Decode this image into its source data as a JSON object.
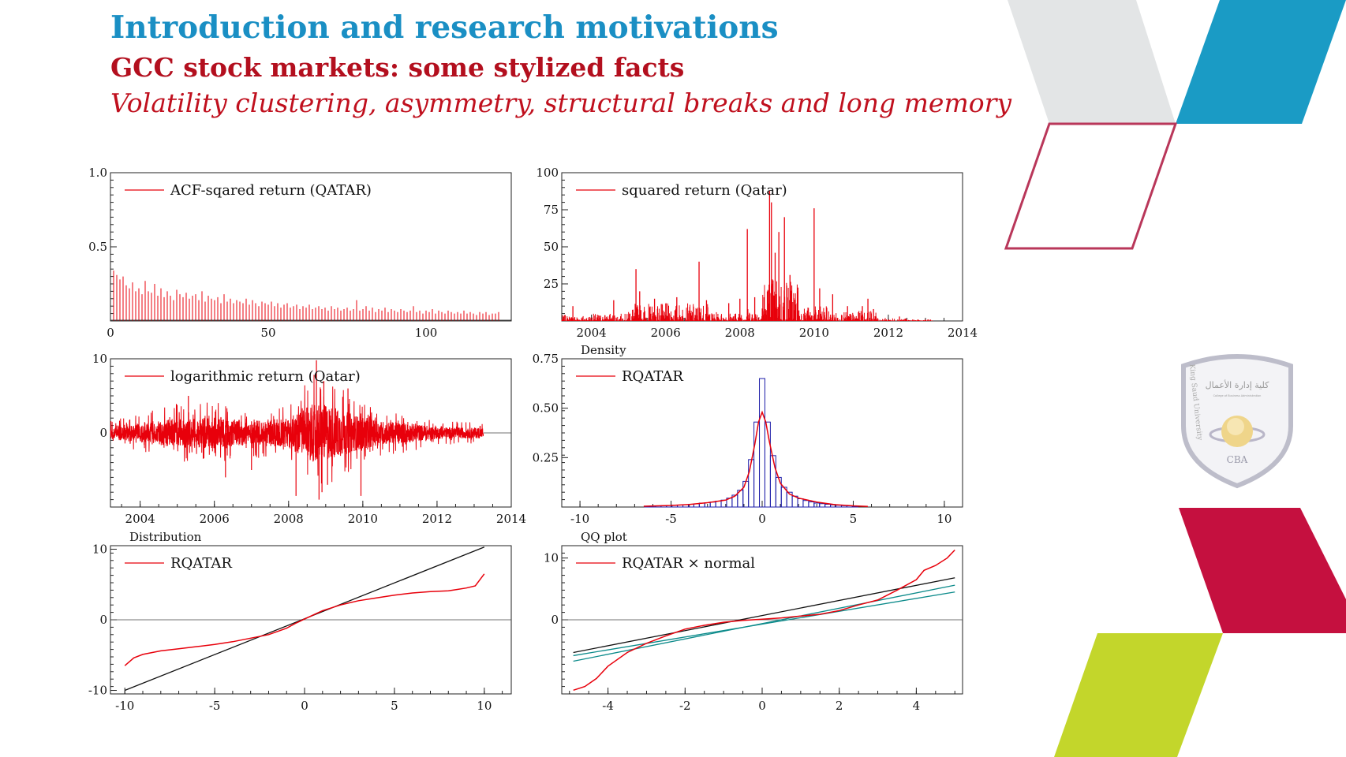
{
  "slide": {
    "title": "Introduction and research motivations",
    "subtitle": "GCC stock markets: some stylized facts",
    "subsubtitle": "Volatility clustering, asymmetry, structural breaks and long memory"
  },
  "logo": {
    "name": "CBA",
    "arabic": "كلية إدارة الأعمال",
    "arc_left": "King Saud University",
    "sub": "College of Business Administration"
  },
  "colors": {
    "blue": "#1a8fc4",
    "red": "#c0101e",
    "series": "#e8000b",
    "teal": "#0b8a8a",
    "crimson": "#c5103f",
    "lime": "#c3d62b",
    "grey": "#e3e5e6",
    "darkblue": "#1b1ba8"
  },
  "chart_data": [
    {
      "id": "acf",
      "type": "bar",
      "legend": "ACF-sqared return (QATAR)",
      "xlim": [
        0,
        127
      ],
      "ylim": [
        0,
        1.0
      ],
      "xticks": [
        "0",
        "50",
        "100"
      ],
      "yticks": [
        "1.0",
        "0.5"
      ],
      "lags_start": 1,
      "values": [
        0.34,
        0.31,
        0.28,
        0.3,
        0.24,
        0.22,
        0.26,
        0.2,
        0.22,
        0.18,
        0.27,
        0.2,
        0.19,
        0.25,
        0.17,
        0.22,
        0.16,
        0.2,
        0.17,
        0.14,
        0.21,
        0.18,
        0.16,
        0.19,
        0.15,
        0.17,
        0.18,
        0.14,
        0.2,
        0.13,
        0.17,
        0.15,
        0.14,
        0.16,
        0.12,
        0.18,
        0.13,
        0.15,
        0.12,
        0.14,
        0.13,
        0.12,
        0.15,
        0.11,
        0.14,
        0.12,
        0.1,
        0.13,
        0.12,
        0.11,
        0.13,
        0.1,
        0.12,
        0.09,
        0.11,
        0.12,
        0.09,
        0.1,
        0.11,
        0.08,
        0.1,
        0.09,
        0.11,
        0.08,
        0.09,
        0.1,
        0.08,
        0.09,
        0.07,
        0.1,
        0.08,
        0.09,
        0.07,
        0.08,
        0.09,
        0.07,
        0.08,
        0.14,
        0.07,
        0.08,
        0.1,
        0.07,
        0.09,
        0.06,
        0.08,
        0.07,
        0.09,
        0.06,
        0.08,
        0.07,
        0.06,
        0.08,
        0.07,
        0.06,
        0.07,
        0.1,
        0.06,
        0.07,
        0.05,
        0.07,
        0.06,
        0.08,
        0.05,
        0.07,
        0.06,
        0.05,
        0.07,
        0.06,
        0.05,
        0.06,
        0.05,
        0.07,
        0.05,
        0.06,
        0.05,
        0.04,
        0.06,
        0.05,
        0.06,
        0.04,
        0.05,
        0.05,
        0.06
      ]
    },
    {
      "id": "sqret",
      "type": "line",
      "legend": "squared return (Qatar)",
      "xlim": [
        2003.2,
        2014
      ],
      "ylim": [
        0,
        100
      ],
      "xticks": [
        "2004",
        "2006",
        "2008",
        "2010",
        "2012",
        "2014"
      ],
      "yticks": [
        "100",
        "75",
        "50",
        "25"
      ],
      "spikes": [
        [
          2003.5,
          10
        ],
        [
          2004.6,
          14
        ],
        [
          2005.2,
          35
        ],
        [
          2005.3,
          20
        ],
        [
          2005.7,
          15
        ],
        [
          2006.3,
          16
        ],
        [
          2006.9,
          40
        ],
        [
          2007.1,
          14
        ],
        [
          2007.7,
          12
        ],
        [
          2008.0,
          15
        ],
        [
          2008.2,
          62
        ],
        [
          2008.4,
          16
        ],
        [
          2008.65,
          16
        ],
        [
          2008.8,
          88
        ],
        [
          2008.85,
          80
        ],
        [
          2008.95,
          46
        ],
        [
          2009.05,
          60
        ],
        [
          2009.2,
          70
        ],
        [
          2009.35,
          31
        ],
        [
          2009.55,
          20
        ],
        [
          2010.0,
          76
        ],
        [
          2010.15,
          22
        ],
        [
          2010.5,
          18
        ],
        [
          2010.9,
          10
        ],
        [
          2011.3,
          10
        ],
        [
          2011.45,
          15
        ],
        [
          2011.6,
          8
        ],
        [
          2012.3,
          3
        ]
      ],
      "bursts": [
        [
          2003.2,
          2004.0,
          4
        ],
        [
          2004.0,
          2005.0,
          5
        ],
        [
          2005.0,
          2006.0,
          12
        ],
        [
          2006.0,
          2007.2,
          12
        ],
        [
          2007.2,
          2008.0,
          6
        ],
        [
          2008.0,
          2008.6,
          9
        ],
        [
          2008.6,
          2009.6,
          32
        ],
        [
          2009.6,
          2010.4,
          10
        ],
        [
          2010.4,
          2011.2,
          6
        ],
        [
          2011.2,
          2011.7,
          7
        ],
        [
          2011.7,
          2012.5,
          2
        ],
        [
          2012.5,
          2013.2,
          1
        ]
      ]
    },
    {
      "id": "logret",
      "type": "line",
      "legend": "logarithmic return (Qatar)",
      "xlim": [
        2003.2,
        2014
      ],
      "ylim": [
        -10,
        10
      ],
      "xticks": [
        "2004",
        "2006",
        "2008",
        "2010",
        "2012",
        "2014"
      ],
      "yticks": [
        "10",
        "0"
      ],
      "series_end": 2013.25,
      "amplitude_profile": [
        [
          2003.2,
          1.2
        ],
        [
          2004.0,
          1.6
        ],
        [
          2005.0,
          2.5
        ],
        [
          2006.0,
          2.6
        ],
        [
          2007.0,
          2.0
        ],
        [
          2008.0,
          2.6
        ],
        [
          2008.7,
          5.0
        ],
        [
          2009.2,
          4.5
        ],
        [
          2009.8,
          3.0
        ],
        [
          2010.5,
          2.0
        ],
        [
          2011.2,
          1.7
        ],
        [
          2012.0,
          1.0
        ],
        [
          2013.25,
          0.9
        ]
      ],
      "extremes": [
        [
          2008.75,
          9.8
        ],
        [
          2008.82,
          -9
        ],
        [
          2008.9,
          -8
        ],
        [
          2008.95,
          7
        ],
        [
          2009.05,
          -7
        ],
        [
          2008.2,
          -8.5
        ],
        [
          2009.95,
          -8.5
        ],
        [
          2009.6,
          6
        ],
        [
          2005.3,
          5
        ],
        [
          2007.0,
          -5
        ],
        [
          2006.3,
          -6
        ]
      ]
    },
    {
      "id": "density",
      "type": "bar",
      "title": "Density",
      "legend": "RQATAR",
      "xlim": [
        -11,
        11
      ],
      "ylim": [
        0,
        0.75
      ],
      "xticks": [
        "-10",
        "-5",
        "0",
        "5",
        "10"
      ],
      "yticks": [
        "0.75",
        "0.50",
        "0.25"
      ],
      "bin_width": 0.3,
      "bins": [
        [
          -6.3,
          0.004
        ],
        [
          -6.0,
          0.005
        ],
        [
          -5.7,
          0.006
        ],
        [
          -5.4,
          0.007
        ],
        [
          -5.1,
          0.008
        ],
        [
          -4.8,
          0.009
        ],
        [
          -4.5,
          0.01
        ],
        [
          -4.2,
          0.012
        ],
        [
          -3.9,
          0.014
        ],
        [
          -3.6,
          0.016
        ],
        [
          -3.3,
          0.02
        ],
        [
          -3.0,
          0.022
        ],
        [
          -2.7,
          0.025
        ],
        [
          -2.4,
          0.03
        ],
        [
          -2.1,
          0.035
        ],
        [
          -1.8,
          0.045
        ],
        [
          -1.5,
          0.06
        ],
        [
          -1.2,
          0.085
        ],
        [
          -0.9,
          0.13
        ],
        [
          -0.6,
          0.24
        ],
        [
          -0.3,
          0.43
        ],
        [
          0.0,
          0.65
        ],
        [
          0.3,
          0.43
        ],
        [
          0.6,
          0.26
        ],
        [
          0.9,
          0.15
        ],
        [
          1.2,
          0.1
        ],
        [
          1.5,
          0.075
        ],
        [
          1.8,
          0.055
        ],
        [
          2.1,
          0.042
        ],
        [
          2.4,
          0.033
        ],
        [
          2.7,
          0.026
        ],
        [
          3.0,
          0.02
        ],
        [
          3.3,
          0.017
        ],
        [
          3.6,
          0.014
        ],
        [
          3.9,
          0.011
        ],
        [
          4.2,
          0.009
        ],
        [
          4.5,
          0.007
        ],
        [
          4.8,
          0.006
        ],
        [
          5.1,
          0.004
        ]
      ],
      "kde_x": [
        -6.5,
        -5,
        -4,
        -3,
        -2,
        -1.5,
        -1,
        -0.7,
        -0.4,
        -0.2,
        0,
        0.2,
        0.4,
        0.7,
        1,
        1.5,
        2,
        3,
        4,
        5,
        5.8
      ],
      "kde_y": [
        0.004,
        0.008,
        0.013,
        0.022,
        0.035,
        0.055,
        0.1,
        0.18,
        0.32,
        0.43,
        0.48,
        0.43,
        0.33,
        0.2,
        0.12,
        0.066,
        0.045,
        0.025,
        0.012,
        0.006,
        0.003
      ]
    },
    {
      "id": "distribution",
      "type": "line",
      "title": "Distribution",
      "legend": "RQATAR",
      "xlim": [
        -10.8,
        11.5
      ],
      "ylim": [
        -10.5,
        10.5
      ],
      "xticks": [
        "-10",
        "-5",
        "0",
        "5",
        "10"
      ],
      "yticks": [
        "10",
        "0",
        "-10"
      ],
      "ref_x": [
        -10,
        10
      ],
      "ref_y": [
        -10,
        10.3
      ],
      "x": [
        -10,
        -9.5,
        -9,
        -8,
        -7,
        -6,
        -5,
        -4,
        -3,
        -2,
        -1,
        -0.5,
        0,
        0.5,
        1,
        2,
        3,
        4,
        5,
        6,
        7,
        8,
        8.5,
        9,
        9.5,
        10
      ],
      "y": [
        -6.5,
        -5.4,
        -4.9,
        -4.4,
        -4.1,
        -3.8,
        -3.5,
        -3.1,
        -2.6,
        -2.1,
        -1.2,
        -0.5,
        0.1,
        0.7,
        1.3,
        2.1,
        2.7,
        3.1,
        3.5,
        3.8,
        4.0,
        4.1,
        4.3,
        4.5,
        4.8,
        6.5
      ]
    },
    {
      "id": "qq",
      "type": "line",
      "title": "QQ plot",
      "legend": "RQATAR × normal",
      "xlim": [
        -5.2,
        5.2
      ],
      "ylim": [
        -12,
        12
      ],
      "xticks": [
        "-4",
        "-2",
        "0",
        "2",
        "4"
      ],
      "yticks": [
        "10",
        "0"
      ],
      "x": [
        -4.9,
        -4.6,
        -4.3,
        -4.0,
        -3.5,
        -3.0,
        -2.5,
        -2.0,
        -1.5,
        -1.0,
        -0.5,
        0,
        0.5,
        1.0,
        1.5,
        2.0,
        2.5,
        3.0,
        3.5,
        4.0,
        4.2,
        4.5,
        4.8,
        5.0
      ],
      "y": [
        -11.4,
        -10.8,
        -9.5,
        -7.5,
        -5.3,
        -3.8,
        -2.6,
        -1.5,
        -0.9,
        -0.4,
        -0.1,
        0.1,
        0.3,
        0.6,
        0.9,
        1.5,
        2.4,
        3.2,
        4.8,
        6.5,
        8.0,
        8.8,
        10.0,
        11.3
      ],
      "bands": [
        [
          [
            -4.9,
            -5.3
          ],
          [
            5.0,
            6.8
          ]
        ],
        [
          [
            -4.9,
            -6.7
          ],
          [
            5.0,
            5.6
          ]
        ],
        [
          [
            -4.9,
            -5.8
          ],
          [
            5.0,
            4.5
          ]
        ]
      ]
    }
  ]
}
